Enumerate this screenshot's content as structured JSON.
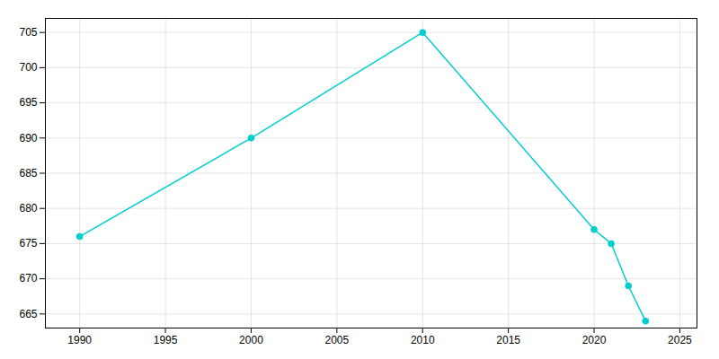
{
  "chart_data": {
    "type": "line",
    "x": [
      1990,
      2000,
      2010,
      2020,
      2021,
      2022,
      2023
    ],
    "values": [
      676,
      690,
      705,
      677,
      675,
      669,
      664
    ],
    "color": "#00CED1",
    "marker": "circle",
    "xlim": [
      1988,
      2026
    ],
    "xticks": [
      1990,
      1995,
      2000,
      2005,
      2010,
      2015,
      2020,
      2025
    ],
    "ylim": [
      663,
      707
    ],
    "yticks": [
      665,
      670,
      675,
      680,
      685,
      690,
      695,
      700,
      705
    ],
    "grid": true
  }
}
